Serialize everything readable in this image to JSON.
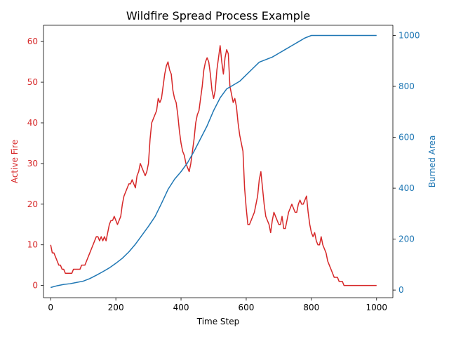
{
  "chart_data": {
    "type": "line",
    "title": "Wildfire Spread Process Example",
    "xlabel": "Time Step",
    "xlim": [
      -22,
      1050
    ],
    "xticks": [
      0,
      200,
      400,
      600,
      800,
      1000
    ],
    "axes": {
      "left": {
        "label": "Active Fire",
        "color": "#d62728",
        "ylim": [
          -3,
          64
        ],
        "ticks": [
          0,
          10,
          20,
          30,
          40,
          50,
          60
        ]
      },
      "right": {
        "label": "Burned Area",
        "color": "#1f77b4",
        "ylim": [
          -30,
          1040
        ],
        "ticks": [
          0,
          200,
          400,
          600,
          800,
          1000
        ]
      }
    },
    "series": [
      {
        "axis": "left",
        "color": "#d62728",
        "x": [
          0,
          5,
          10,
          15,
          20,
          25,
          30,
          35,
          40,
          45,
          50,
          55,
          60,
          65,
          70,
          75,
          80,
          85,
          90,
          95,
          100,
          105,
          110,
          115,
          120,
          125,
          130,
          135,
          140,
          145,
          150,
          155,
          160,
          165,
          170,
          175,
          180,
          185,
          190,
          195,
          200,
          205,
          210,
          215,
          220,
          225,
          230,
          235,
          240,
          245,
          250,
          255,
          260,
          265,
          270,
          275,
          280,
          285,
          290,
          295,
          300,
          305,
          310,
          315,
          320,
          325,
          330,
          335,
          340,
          345,
          350,
          355,
          360,
          365,
          370,
          375,
          380,
          385,
          390,
          395,
          400,
          405,
          410,
          415,
          420,
          425,
          430,
          435,
          440,
          445,
          450,
          455,
          460,
          465,
          470,
          475,
          480,
          485,
          490,
          495,
          500,
          505,
          510,
          515,
          520,
          525,
          530,
          535,
          540,
          545,
          550,
          555,
          560,
          565,
          570,
          575,
          580,
          585,
          590,
          595,
          600,
          605,
          610,
          615,
          620,
          625,
          630,
          635,
          640,
          645,
          650,
          655,
          660,
          665,
          670,
          675,
          680,
          685,
          690,
          695,
          700,
          705,
          710,
          715,
          720,
          725,
          730,
          735,
          740,
          745,
          750,
          755,
          760,
          765,
          770,
          775,
          780,
          785,
          790,
          795,
          800,
          805,
          810,
          815,
          820,
          825,
          830,
          835,
          840,
          845,
          850,
          855,
          860,
          865,
          870,
          875,
          880,
          885,
          890,
          895,
          900,
          950,
          1000
        ],
        "y": [
          10,
          8,
          8,
          7,
          6,
          5,
          5,
          4,
          4,
          3,
          3,
          3,
          3,
          3,
          4,
          4,
          4,
          4,
          4,
          5,
          5,
          5,
          6,
          7,
          8,
          9,
          10,
          11,
          12,
          12,
          11,
          12,
          11,
          12,
          11,
          13,
          15,
          16,
          16,
          17,
          16,
          15,
          16,
          17,
          20,
          22,
          23,
          24,
          25,
          25,
          26,
          25,
          24,
          27,
          28,
          30,
          29,
          28,
          27,
          28,
          30,
          36,
          40,
          41,
          42,
          43,
          46,
          45,
          46,
          49,
          52,
          54,
          55,
          53,
          52,
          48,
          46,
          45,
          42,
          38,
          35,
          33,
          32,
          30,
          29,
          28,
          30,
          33,
          36,
          40,
          42,
          43,
          46,
          49,
          53,
          55,
          56,
          55,
          52,
          48,
          46,
          48,
          53,
          56,
          59,
          55,
          52,
          56,
          58,
          57,
          49,
          47,
          45,
          46,
          44,
          40,
          37,
          35,
          33,
          24,
          19,
          15,
          15,
          16,
          17,
          18,
          20,
          22,
          26,
          28,
          24,
          20,
          17,
          16,
          15,
          13,
          16,
          18,
          17,
          16,
          15,
          15,
          17,
          14,
          14,
          16,
          18,
          19,
          20,
          19,
          18,
          18,
          20,
          21,
          20,
          20,
          21,
          22,
          18,
          15,
          13,
          12,
          13,
          11,
          10,
          10,
          12,
          10,
          9,
          8,
          6,
          5,
          4,
          3,
          2,
          2,
          2,
          1,
          1,
          1,
          0,
          0,
          0
        ]
      },
      {
        "axis": "right",
        "color": "#1f77b4",
        "x": [
          0,
          20,
          40,
          60,
          80,
          100,
          120,
          140,
          160,
          180,
          200,
          220,
          240,
          260,
          280,
          300,
          320,
          340,
          360,
          380,
          400,
          420,
          440,
          460,
          480,
          500,
          520,
          540,
          560,
          580,
          600,
          620,
          640,
          660,
          680,
          700,
          720,
          740,
          760,
          780,
          800,
          820,
          830,
          900,
          1000
        ],
        "y": [
          10,
          17,
          22,
          25,
          30,
          35,
          45,
          58,
          72,
          87,
          105,
          125,
          150,
          180,
          215,
          250,
          288,
          340,
          395,
          435,
          465,
          500,
          545,
          595,
          645,
          705,
          755,
          790,
          805,
          820,
          845,
          870,
          895,
          905,
          915,
          930,
          945,
          960,
          975,
          990,
          1000,
          1000,
          1000,
          1000,
          1000
        ]
      }
    ]
  }
}
